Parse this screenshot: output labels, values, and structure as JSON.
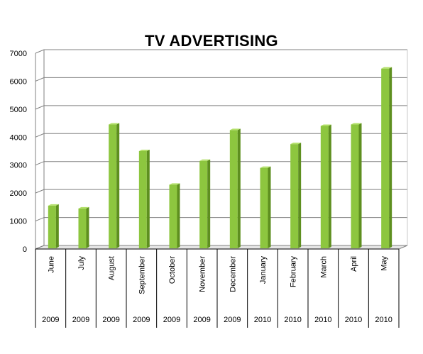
{
  "colors": {
    "bar_front": "#8dc63f",
    "bar_side": "#5e8f1f",
    "bar_top": "#b3e06a",
    "grid": "#808080",
    "wall": "#ffffff",
    "floor": "#e6e6e6"
  },
  "chart_data": {
    "type": "bar",
    "title": "TV ADVERTISING",
    "xlabel": "",
    "ylabel": "",
    "ylim": [
      0,
      7000
    ],
    "yticks": [
      "0",
      "1000",
      "2000",
      "3000",
      "4000",
      "5000",
      "6000",
      "7000"
    ],
    "grid": true,
    "legend": "none",
    "categories": [
      {
        "month": "June",
        "year": "2009"
      },
      {
        "month": "July",
        "year": "2009"
      },
      {
        "month": "August",
        "year": "2009"
      },
      {
        "month": "September",
        "year": "2009"
      },
      {
        "month": "October",
        "year": "2009"
      },
      {
        "month": "November",
        "year": "2009"
      },
      {
        "month": "December",
        "year": "2009"
      },
      {
        "month": "January",
        "year": "2010"
      },
      {
        "month": "February",
        "year": "2010"
      },
      {
        "month": "March",
        "year": "2010"
      },
      {
        "month": "April",
        "year": "2010"
      },
      {
        "month": "May",
        "year": "2010"
      }
    ],
    "values": [
      1550,
      1450,
      4450,
      3500,
      2300,
      3150,
      4250,
      2900,
      3750,
      4400,
      4450,
      6450
    ]
  }
}
